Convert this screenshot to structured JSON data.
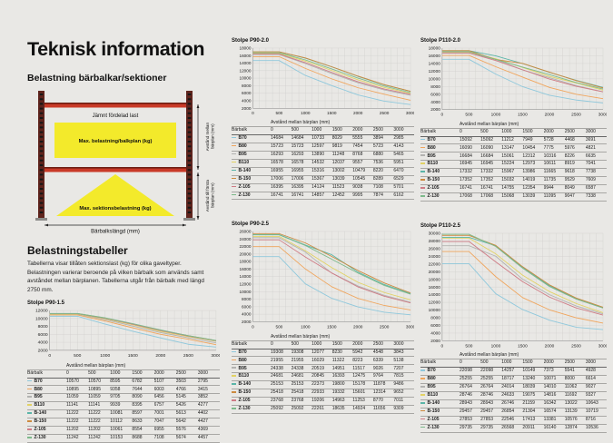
{
  "page": {
    "title": "Teknisk information",
    "subtitle": "Belastning bärbalkar/sektioner",
    "tables_heading": "Belastningstabeller",
    "tables_text": "Tabellerna visar tillåten sektionslast (kg) för olika gaveltyper. Belastningen varierar beroende på vilken bärbalk som används samt avståndet mellan bärplanen. Tabellerna utgår från bärbalk med längd 2750 mm."
  },
  "diagram": {
    "uniform_load_label": "Jämnt fördelad last",
    "beam_load_label": "Max. belastning/balkplan (kg)",
    "section_load_label": "Max. sektionsbelastning (kg)",
    "beam_length_label": "Bärbalkslängd (mm)",
    "between_levels_label_l1": "Avstånd mellan",
    "between_levels_label_l2": "bärplan (mm)",
    "first_level_label_l1": "Avstånd till första",
    "first_level_label_l2": "bärplan (mm)"
  },
  "colors": {
    "background": "#e9e8e5",
    "beam_red": "#c93a28",
    "post_maroon": "#5f241d",
    "highlight_yellow": "#f3ea2b",
    "grid": "#cfcecb"
  },
  "chart_data": [
    {
      "type": "line",
      "title": "Stolpe P90-1.5",
      "xlabel": "Avstånd mellan bärplan (mm)",
      "row_header": "Bärbalk",
      "x": [
        0,
        500,
        1000,
        1500,
        2000,
        2500,
        3000
      ],
      "ylim": [
        2000,
        12000
      ],
      "ystep": 2000,
      "grid": true,
      "legend_position": "none",
      "series": [
        {
          "name": "B70",
          "color": "#8fc8dc",
          "values": [
            10570,
            10570,
            8595,
            6782,
            5107,
            3503,
            2795
          ]
        },
        {
          "name": "B80",
          "color": "#f0a55c",
          "values": [
            10895,
            10895,
            9358,
            7644,
            6003,
            4766,
            3415
          ]
        },
        {
          "name": "B95",
          "color": "#b2b2b0",
          "values": [
            11059,
            11059,
            9705,
            8090,
            6456,
            5145,
            3852
          ]
        },
        {
          "name": "B110",
          "color": "#e2d264",
          "values": [
            11141,
            11141,
            9939,
            8395,
            6757,
            5426,
            4277
          ]
        },
        {
          "name": "B-140",
          "color": "#5ab5a8",
          "values": [
            11222,
            11222,
            10081,
            8597,
            7001,
            5613,
            4402
          ]
        },
        {
          "name": "B-150",
          "color": "#cd8a3e",
          "values": [
            11222,
            11222,
            10112,
            8633,
            7047,
            5642,
            4427
          ]
        },
        {
          "name": "Z-105",
          "color": "#cf7b85",
          "values": [
            11202,
            11202,
            10061,
            8554,
            6955,
            5576,
            4369
          ]
        },
        {
          "name": "Z-130",
          "color": "#7cb98a",
          "values": [
            11242,
            11242,
            10153,
            8688,
            7108,
            5674,
            4457
          ]
        }
      ]
    },
    {
      "type": "line",
      "title": "Stolpe P90-2.0",
      "xlabel": "Avstånd mellan bärplan (mm)",
      "row_header": "Bärbalk",
      "x": [
        0,
        500,
        1000,
        1500,
        2000,
        2500,
        3000
      ],
      "ylim": [
        2000,
        18000
      ],
      "ystep": 2000,
      "grid": true,
      "legend_position": "none",
      "series": [
        {
          "name": "B70",
          "color": "#8fc8dc",
          "values": [
            14684,
            14684,
            10733,
            8029,
            5555,
            3894,
            2985
          ]
        },
        {
          "name": "B80",
          "color": "#f0a55c",
          "values": [
            15723,
            15723,
            12597,
            9819,
            7454,
            5723,
            4143
          ]
        },
        {
          "name": "B95",
          "color": "#b2b2b0",
          "values": [
            16293,
            16293,
            13890,
            11248,
            8768,
            6880,
            5465
          ]
        },
        {
          "name": "B110",
          "color": "#e2d264",
          "values": [
            16578,
            16578,
            14532,
            12037,
            9557,
            7536,
            5951
          ]
        },
        {
          "name": "B-140",
          "color": "#5ab5a8",
          "values": [
            16955,
            16955,
            15316,
            13002,
            10479,
            8220,
            6470
          ]
        },
        {
          "name": "B-150",
          "color": "#cd8a3e",
          "values": [
            17006,
            17006,
            15367,
            13039,
            10545,
            8289,
            6529
          ]
        },
        {
          "name": "Z-105",
          "color": "#cf7b85",
          "values": [
            16395,
            16395,
            14124,
            11523,
            9038,
            7108,
            5701
          ]
        },
        {
          "name": "Z-130",
          "color": "#7cb98a",
          "values": [
            16741,
            16741,
            14857,
            12452,
            9995,
            7874,
            6162
          ]
        }
      ]
    },
    {
      "type": "line",
      "title": "Stolpe P90-2.5",
      "xlabel": "Avstånd mellan bärplan (mm)",
      "row_header": "Bärbalk",
      "x": [
        0,
        500,
        1000,
        1500,
        2000,
        2500,
        3000
      ],
      "ylim": [
        2000,
        26000
      ],
      "ystep": 2000,
      "grid": true,
      "legend_position": "none",
      "series": [
        {
          "name": "B70",
          "color": "#8fc8dc",
          "values": [
            19308,
            19308,
            12077,
            8230,
            5942,
            4548,
            3843
          ]
        },
        {
          "name": "B80",
          "color": "#f0a55c",
          "values": [
            21955,
            21955,
            16029,
            11322,
            8223,
            6339,
            5138
          ]
        },
        {
          "name": "B95",
          "color": "#b2b2b0",
          "values": [
            24338,
            24338,
            20519,
            14951,
            11517,
            9026,
            7207
          ]
        },
        {
          "name": "B110",
          "color": "#e2d264",
          "values": [
            24681,
            24681,
            20845,
            16393,
            12475,
            9764,
            7815
          ]
        },
        {
          "name": "B-140",
          "color": "#5ab5a8",
          "values": [
            25153,
            25153,
            22373,
            19800,
            15178,
            11878,
            9486
          ]
        },
        {
          "name": "B-150",
          "color": "#cd8a3e",
          "values": [
            25418,
            25418,
            22933,
            19332,
            15601,
            12314,
            9652
          ]
        },
        {
          "name": "Z-105",
          "color": "#cf7b85",
          "values": [
            23768,
            23768,
            19206,
            14963,
            11253,
            8770,
            7011
          ]
        },
        {
          "name": "Z-130",
          "color": "#7cb98a",
          "values": [
            25092,
            25092,
            22261,
            18635,
            14924,
            11656,
            9309
          ]
        }
      ]
    },
    {
      "type": "line",
      "title": "Stolpe P110-2.0",
      "xlabel": "Avstånd mellan bärplan (mm)",
      "row_header": "Bärbalk",
      "x": [
        0,
        500,
        1000,
        1500,
        2000,
        2500,
        3000
      ],
      "ylim": [
        2000,
        18000
      ],
      "ystep": 2000,
      "grid": true,
      "legend_position": "none",
      "series": [
        {
          "name": "B70",
          "color": "#8fc8dc",
          "values": [
            15092,
            15092,
            11212,
            7949,
            5728,
            4468,
            3691
          ]
        },
        {
          "name": "B80",
          "color": "#f0a55c",
          "values": [
            16090,
            16090,
            13147,
            10454,
            7775,
            5976,
            4821
          ]
        },
        {
          "name": "B95",
          "color": "#b2b2b0",
          "values": [
            16684,
            16684,
            15061,
            12312,
            10316,
            8226,
            6635
          ]
        },
        {
          "name": "B110",
          "color": "#e2d264",
          "values": [
            16945,
            16945,
            15224,
            12973,
            10611,
            8919,
            7041
          ]
        },
        {
          "name": "B-140",
          "color": "#5ab5a8",
          "values": [
            17332,
            17332,
            15967,
            13986,
            11665,
            9618,
            7738
          ]
        },
        {
          "name": "B-150",
          "color": "#cd8a3e",
          "values": [
            17352,
            17352,
            15032,
            14019,
            11735,
            9529,
            7609
          ]
        },
        {
          "name": "Z-105",
          "color": "#cf7b85",
          "values": [
            16741,
            16741,
            14755,
            12354,
            9944,
            8049,
            6587
          ]
        },
        {
          "name": "Z-130",
          "color": "#7cb98a",
          "values": [
            17068,
            17068,
            15068,
            13039,
            11095,
            9047,
            7338
          ]
        }
      ]
    },
    {
      "type": "line",
      "title": "Stolpe P110-2.5",
      "xlabel": "Avstånd mellan bärplan (mm)",
      "row_header": "Bärbalk",
      "x": [
        0,
        500,
        1000,
        1500,
        2000,
        2500,
        3000
      ],
      "ylim": [
        2000,
        30000
      ],
      "ystep": 2000,
      "grid": true,
      "legend_position": "none",
      "series": [
        {
          "name": "B70",
          "color": "#8fc8dc",
          "values": [
            22098,
            22098,
            14257,
            10149,
            7373,
            5541,
            4928
          ]
        },
        {
          "name": "B80",
          "color": "#f0a55c",
          "values": [
            25255,
            25255,
            18717,
            13240,
            10071,
            8000,
            6614
          ]
        },
        {
          "name": "B95",
          "color": "#b2b2b0",
          "values": [
            26764,
            26764,
            24014,
            18039,
            14010,
            11062,
            9027
          ]
        },
        {
          "name": "B110",
          "color": "#e2d264",
          "values": [
            28746,
            28746,
            24633,
            19075,
            14816,
            11692,
            9327
          ]
        },
        {
          "name": "B-140",
          "color": "#5ab5a8",
          "values": [
            28943,
            28943,
            26746,
            21159,
            16342,
            13022,
            10643
          ]
        },
        {
          "name": "B-150",
          "color": "#cd8a3e",
          "values": [
            29457,
            29457,
            26854,
            21304,
            16574,
            13139,
            10719
          ]
        },
        {
          "name": "Z-105",
          "color": "#cf7b85",
          "values": [
            27853,
            27853,
            22546,
            17413,
            13381,
            10576,
            8716
          ]
        },
        {
          "name": "Z-130",
          "color": "#7cb98a",
          "values": [
            29735,
            29735,
            26568,
            20911,
            16140,
            12874,
            10536
          ]
        }
      ]
    }
  ]
}
